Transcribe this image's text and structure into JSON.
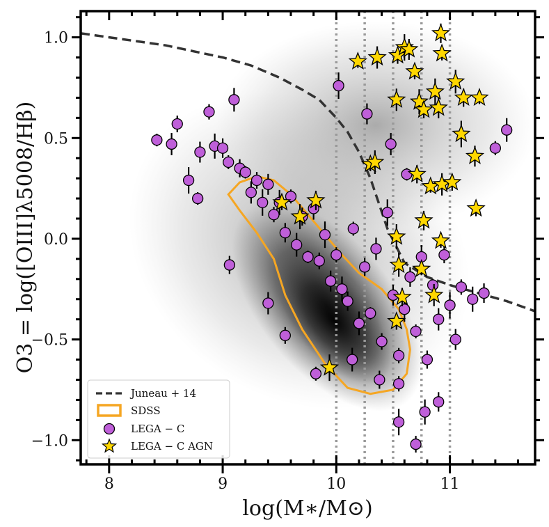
{
  "chart_data": {
    "type": "scatter",
    "xlabel": "log(M∗/M⊙)",
    "ylabel": "O3 = log([OIII]λ5008/Hβ)",
    "xlim": [
      7.75,
      11.75
    ],
    "ylim": [
      -1.12,
      1.13
    ],
    "x_ticks": [
      8,
      9,
      10,
      11
    ],
    "x_tick_labels": [
      "8",
      "9",
      "10",
      "11"
    ],
    "y_ticks": [
      -1.0,
      -0.5,
      0.0,
      0.5,
      1.0
    ],
    "y_tick_labels": [
      "−1.0",
      "−0.5",
      "0.0",
      "0.5",
      "1.0"
    ],
    "vertical_reference_lines": [
      10.0,
      10.25,
      10.5,
      10.75,
      11.0
    ],
    "legend": {
      "position": "lower-left",
      "entries": [
        {
          "label": "Juneau + 14",
          "style": "dashed-line"
        },
        {
          "label": "SDSS",
          "style": "contour-box"
        },
        {
          "label": "LEGA − C",
          "style": "circle"
        },
        {
          "label": "LEGA − C AGN",
          "style": "star"
        }
      ]
    },
    "series": [
      {
        "name": "Juneau + 14",
        "kind": "line",
        "color": "#333333",
        "x": [
          7.75,
          8.0,
          8.25,
          8.5,
          8.75,
          9.0,
          9.25,
          9.5,
          9.7,
          9.85,
          10.0,
          10.1,
          10.2,
          10.3,
          10.45,
          10.6,
          10.8,
          11.0,
          11.25,
          11.5,
          11.75
        ],
        "y": [
          1.02,
          1.0,
          0.98,
          0.96,
          0.93,
          0.9,
          0.86,
          0.8,
          0.74,
          0.69,
          0.6,
          0.53,
          0.43,
          0.3,
          0.05,
          -0.12,
          -0.19,
          -0.23,
          -0.27,
          -0.31,
          -0.36
        ]
      },
      {
        "name": "SDSS",
        "kind": "contour",
        "color": "#f5a623",
        "x": [
          9.05,
          9.15,
          9.3,
          9.45,
          9.6,
          9.75,
          9.9,
          10.05,
          10.2,
          10.4,
          10.55,
          10.62,
          10.65,
          10.62,
          10.5,
          10.3,
          10.1,
          9.9,
          9.7,
          9.55,
          9.45,
          9.3,
          9.15,
          9.05
        ],
        "y": [
          0.22,
          0.28,
          0.31,
          0.29,
          0.22,
          0.12,
          0.02,
          -0.08,
          -0.17,
          -0.25,
          -0.35,
          -0.45,
          -0.55,
          -0.67,
          -0.75,
          -0.77,
          -0.74,
          -0.62,
          -0.45,
          -0.28,
          -0.1,
          0.03,
          0.14,
          0.22
        ]
      },
      {
        "name": "LEGA − C",
        "kind": "scatter",
        "marker": "circle",
        "color": "#bf5fd9",
        "x": [
          8.42,
          8.55,
          8.6,
          8.7,
          8.8,
          8.88,
          8.93,
          9.0,
          9.05,
          9.1,
          9.15,
          9.2,
          9.25,
          9.3,
          9.35,
          9.4,
          9.45,
          9.5,
          9.55,
          9.6,
          9.65,
          9.7,
          9.75,
          9.8,
          9.85,
          9.9,
          9.95,
          10.0,
          10.05,
          10.1,
          10.15,
          10.2,
          10.25,
          10.3,
          10.35,
          10.4,
          10.45,
          10.5,
          10.55,
          10.6,
          10.65,
          10.7,
          10.75,
          10.8,
          10.85,
          10.9,
          10.95,
          11.0,
          11.05,
          11.1,
          11.2,
          11.3,
          11.4,
          11.5,
          9.06,
          8.78,
          9.4,
          9.55,
          10.02,
          10.27,
          10.55,
          10.78,
          10.9,
          9.82,
          10.14,
          10.38,
          10.62,
          10.48,
          10.7,
          10.55
        ],
        "y": [
          0.49,
          0.47,
          0.57,
          0.29,
          0.43,
          0.63,
          0.46,
          0.45,
          0.38,
          0.69,
          0.35,
          0.33,
          0.23,
          0.29,
          0.18,
          0.27,
          0.12,
          0.18,
          0.03,
          0.21,
          -0.03,
          0.11,
          -0.09,
          0.15,
          -0.11,
          0.02,
          -0.21,
          -0.08,
          -0.25,
          -0.31,
          0.05,
          -0.42,
          -0.14,
          -0.37,
          -0.05,
          -0.51,
          0.13,
          -0.28,
          -0.58,
          -0.35,
          -0.19,
          -0.46,
          -0.09,
          -0.6,
          -0.23,
          -0.4,
          -0.08,
          -0.33,
          -0.5,
          -0.24,
          -0.3,
          -0.27,
          0.45,
          0.54,
          -0.13,
          0.2,
          -0.32,
          -0.48,
          0.76,
          0.62,
          -0.72,
          -0.86,
          -0.81,
          -0.67,
          -0.6,
          -0.7,
          0.32,
          0.47,
          -1.02,
          -0.91
        ]
      },
      {
        "name": "LEGA − C AGN",
        "kind": "scatter",
        "marker": "star",
        "color": "#ffd700",
        "x": [
          10.19,
          10.36,
          10.54,
          10.6,
          10.64,
          10.69,
          10.73,
          10.92,
          10.93,
          11.05,
          11.12,
          11.26,
          10.53,
          10.77,
          10.87,
          10.9,
          9.52,
          9.68,
          9.82,
          10.3,
          10.34,
          10.71,
          10.83,
          10.93,
          11.02,
          11.1,
          11.22,
          11.23,
          10.53,
          10.77,
          10.92,
          10.55,
          10.58,
          10.75,
          10.86,
          10.53,
          9.94
        ],
        "y": [
          0.88,
          0.9,
          0.91,
          0.95,
          0.94,
          0.83,
          0.68,
          1.02,
          0.92,
          0.78,
          0.7,
          0.7,
          0.69,
          0.64,
          0.73,
          0.65,
          0.18,
          0.11,
          0.19,
          0.37,
          0.38,
          0.32,
          0.26,
          0.27,
          0.28,
          0.52,
          0.41,
          0.15,
          0.01,
          0.09,
          -0.01,
          -0.13,
          -0.29,
          -0.15,
          -0.28,
          -0.41,
          -0.64
        ]
      }
    ]
  }
}
